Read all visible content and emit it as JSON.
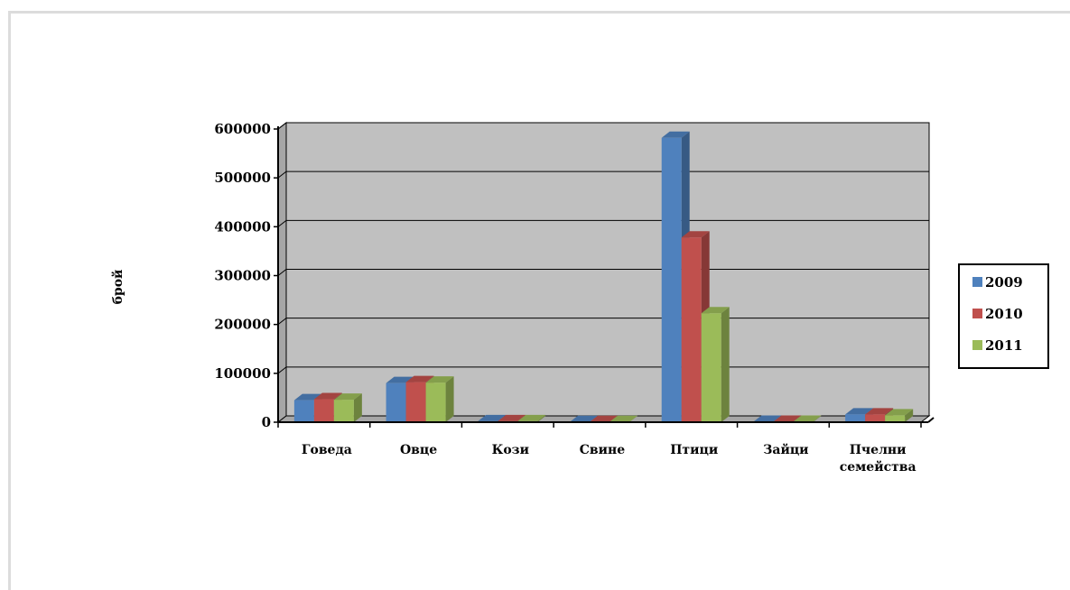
{
  "chart_data": {
    "type": "bar",
    "title": "",
    "xlabel": "",
    "ylabel": "брой",
    "ylim": [
      0,
      600000
    ],
    "yticks": [
      "0",
      "100000",
      "200000",
      "300000",
      "400000",
      "500000",
      "600000"
    ],
    "categories": [
      "Говеда",
      "Овце",
      "Кози",
      "Свине",
      "Птици",
      "Зайци",
      "Пчелни семейства"
    ],
    "series": [
      {
        "name": "2009",
        "color": "#4f81bd",
        "values": [
          45000,
          80000,
          2000,
          500,
          582000,
          1000,
          16000
        ]
      },
      {
        "name": "2010",
        "color": "#c0504d",
        "values": [
          47000,
          82000,
          2000,
          500,
          378000,
          1000,
          16000
        ]
      },
      {
        "name": "2011",
        "color": "#9bbb59",
        "values": [
          46000,
          81000,
          2000,
          500,
          223000,
          1000,
          14000
        ]
      }
    ],
    "grid": true,
    "legend_position": "right",
    "style": "3d-clustered"
  }
}
